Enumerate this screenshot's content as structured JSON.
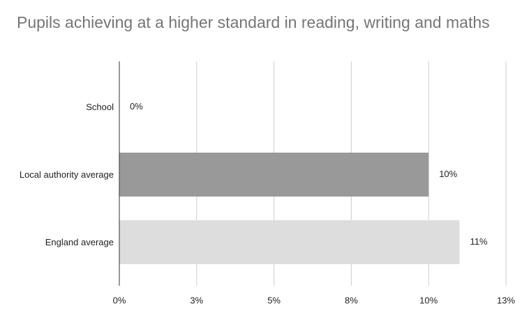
{
  "chart_data": {
    "type": "bar",
    "orientation": "horizontal",
    "title": "Pupils achieving at a higher standard in reading, writing and maths",
    "categories": [
      "School",
      "Local authority average",
      "England average"
    ],
    "values": [
      0,
      10,
      11
    ],
    "value_labels": [
      "0%",
      "10%",
      "11%"
    ],
    "colors": [
      "#999999",
      "#999999",
      "#dddddd"
    ],
    "xlim": [
      0,
      12.5
    ],
    "xticks": [
      {
        "value": 0,
        "label": "0%"
      },
      {
        "value": 2.5,
        "label": "3%"
      },
      {
        "value": 5,
        "label": "5%"
      },
      {
        "value": 7.5,
        "label": "8%"
      },
      {
        "value": 10,
        "label": "10%"
      },
      {
        "value": 12.5,
        "label": "13%"
      }
    ],
    "grid": true
  }
}
